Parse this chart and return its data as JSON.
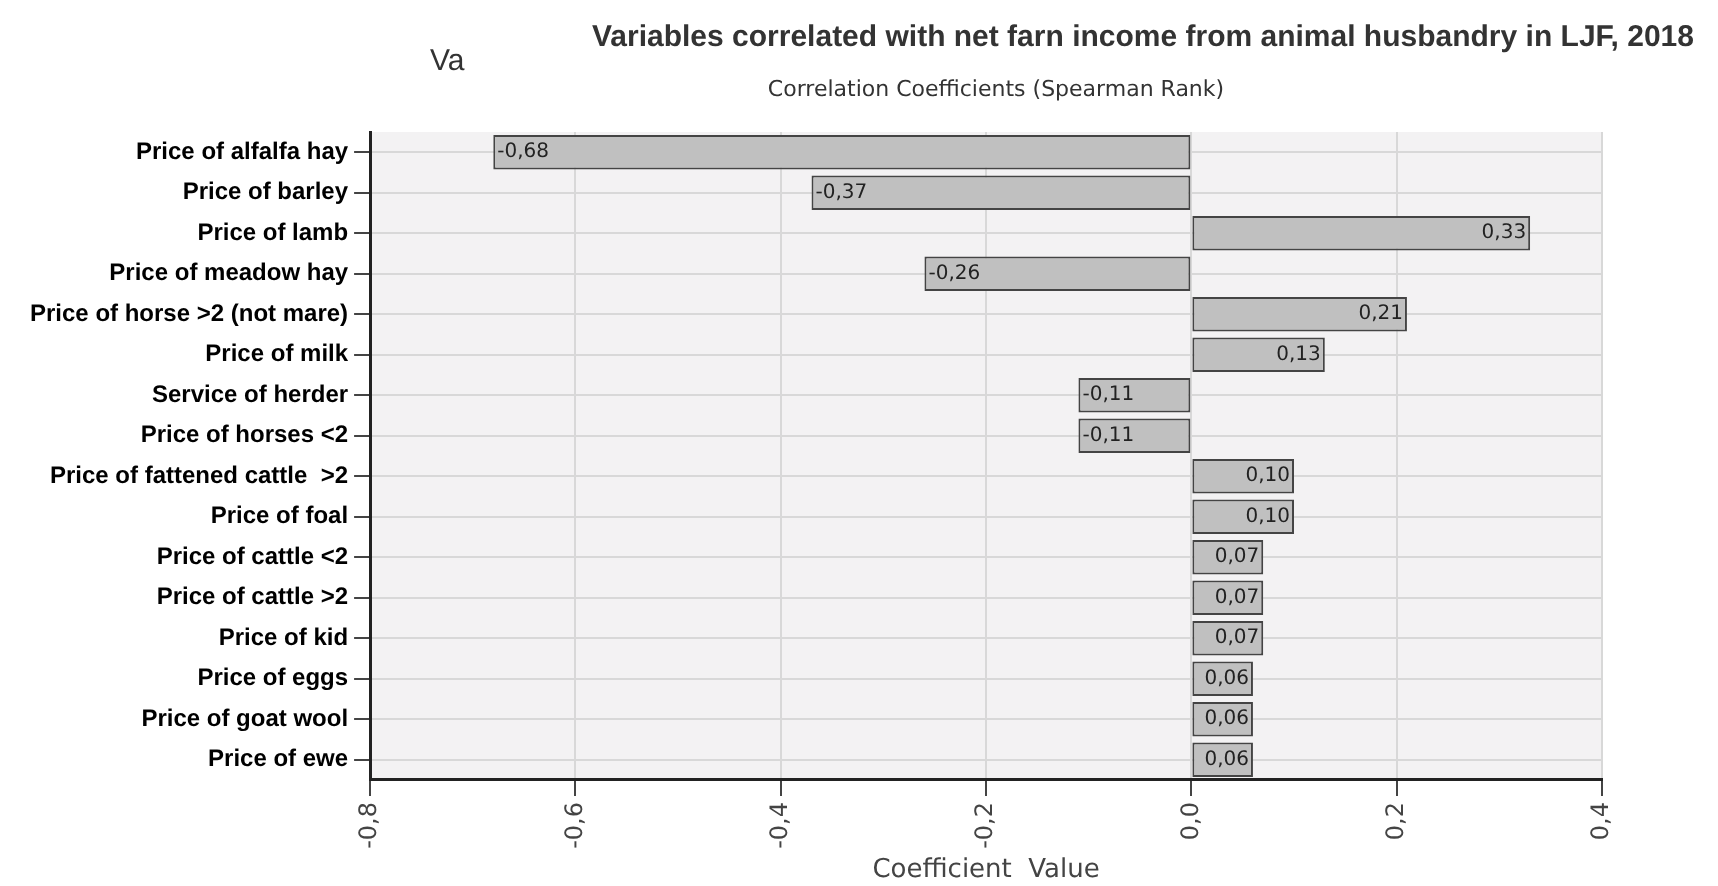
{
  "chart_data": {
    "type": "bar",
    "orientation": "horizontal",
    "title": "Variables correlated with net farn income from animal husbandry in LJF, 2018",
    "subtitle": "Correlation Coefficients (Spearman Rank)",
    "xlabel": "Coefficient  Value",
    "annotations": [
      "Va"
    ],
    "categories": [
      "Price of alfalfa hay",
      "Price of barley",
      "Price of lamb",
      "Price of meadow hay",
      "Price of horse >2 (not mare)",
      "Price of milk",
      "Service of herder",
      "Price of horses <2",
      "Price of fattened cattle  >2",
      "Price of foal",
      "Price of cattle <2",
      "Price of cattle >2",
      "Price of kid",
      "Price of eggs",
      "Price of goat wool",
      "Price of ewe"
    ],
    "values": [
      -0.68,
      -0.37,
      0.33,
      -0.26,
      0.21,
      0.13,
      -0.11,
      -0.11,
      0.1,
      0.1,
      0.07,
      0.07,
      0.07,
      0.06,
      0.06,
      0.06
    ],
    "value_labels": [
      "-0,68",
      "-0,37",
      "0,33",
      "-0,26",
      "0,21",
      "0,13",
      "-0,11",
      "-0,11",
      "0,10",
      "0,10",
      "0,07",
      "0,07",
      "0,07",
      "0,06",
      "0,06",
      "0,06"
    ],
    "color": "#c0c0c0",
    "xlim": [
      -0.8,
      0.4
    ],
    "xticks": [
      {
        "value": -0.8,
        "label": "-0,8"
      },
      {
        "value": -0.6,
        "label": "-0,6"
      },
      {
        "value": -0.4,
        "label": "-0,4"
      },
      {
        "value": -0.2,
        "label": "-0,2"
      },
      {
        "value": 0,
        "label": "0,0"
      },
      {
        "value": 0.2,
        "label": "0,2"
      },
      {
        "value": 0.4,
        "label": "0,4"
      }
    ],
    "grid": true,
    "legend": false
  }
}
